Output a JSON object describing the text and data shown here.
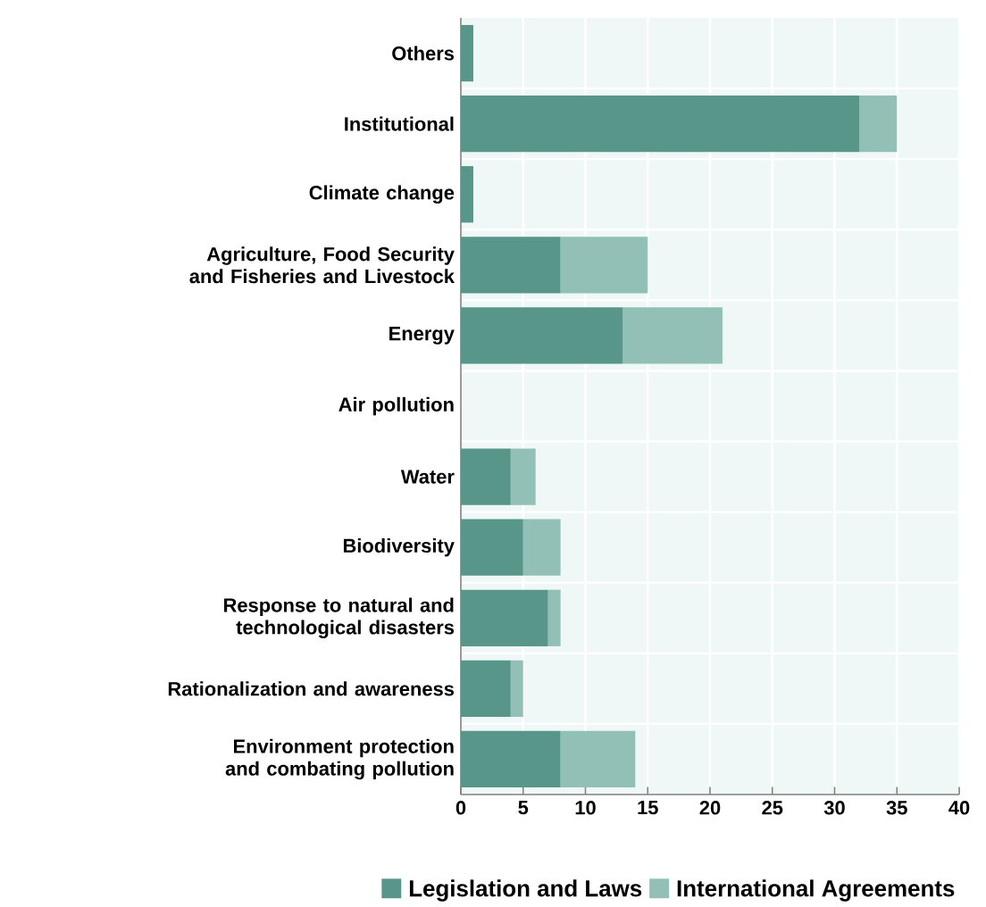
{
  "chart_data": {
    "type": "bar",
    "orientation": "horizontal",
    "stacked": true,
    "categories": [
      "Others",
      "Institutional",
      "Climate change",
      "Agriculture, Food Security and Fisheries and Livestock",
      "Energy",
      "Air pollution",
      "Water",
      "Biodiversity",
      "Response to natural and technological disasters",
      "Rationalization and awareness",
      "Environment protection and combating pollution"
    ],
    "series": [
      {
        "name": "Legislation and Laws",
        "color": "#579688",
        "values": [
          1,
          32,
          1,
          8,
          13,
          0,
          4,
          5,
          7,
          4,
          8
        ]
      },
      {
        "name": "International Agreements",
        "color": "#92c0b6",
        "values": [
          0,
          3,
          0,
          7,
          8,
          0,
          2,
          3,
          1,
          1,
          6
        ]
      }
    ],
    "xlim": [
      0,
      40
    ],
    "xticks": [
      0,
      5,
      10,
      15,
      20,
      25,
      30,
      35,
      40
    ],
    "grid": true,
    "legend": "bottom"
  }
}
